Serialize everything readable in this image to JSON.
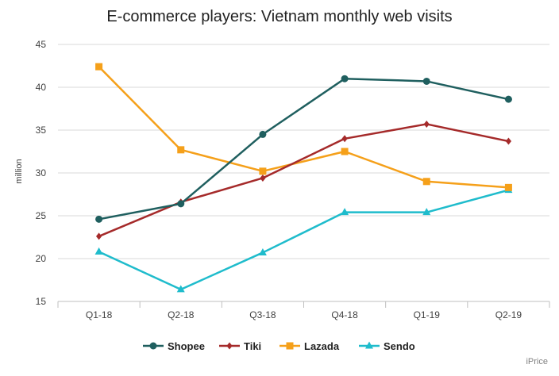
{
  "chart_data": {
    "type": "line",
    "title": "E-commerce players: Vietnam monthly web visits",
    "xlabel": "",
    "ylabel": "million",
    "categories": [
      "Q1-18",
      "Q2-18",
      "Q3-18",
      "Q4-18",
      "Q1-19",
      "Q2-19"
    ],
    "ylim": [
      15,
      45
    ],
    "yticks": [
      15,
      20,
      25,
      30,
      35,
      40,
      45
    ],
    "grid": true,
    "legend_position": "bottom",
    "series": [
      {
        "name": "Shopee",
        "values": [
          24.6,
          26.4,
          34.5,
          41.0,
          40.7,
          38.6
        ],
        "color": "#1f5f5f",
        "marker": "circle"
      },
      {
        "name": "Tiki",
        "values": [
          22.6,
          26.6,
          29.4,
          34.0,
          35.7,
          33.7
        ],
        "color": "#a52a2a",
        "marker": "diamond"
      },
      {
        "name": "Lazada",
        "values": [
          42.4,
          32.7,
          30.2,
          32.5,
          29.0,
          28.3
        ],
        "color": "#f5a01a",
        "marker": "square"
      },
      {
        "name": "Sendo",
        "values": [
          20.8,
          16.4,
          20.7,
          25.4,
          25.4,
          28.0
        ],
        "color": "#1fbccc",
        "marker": "triangle"
      }
    ],
    "source": "iPrice"
  }
}
